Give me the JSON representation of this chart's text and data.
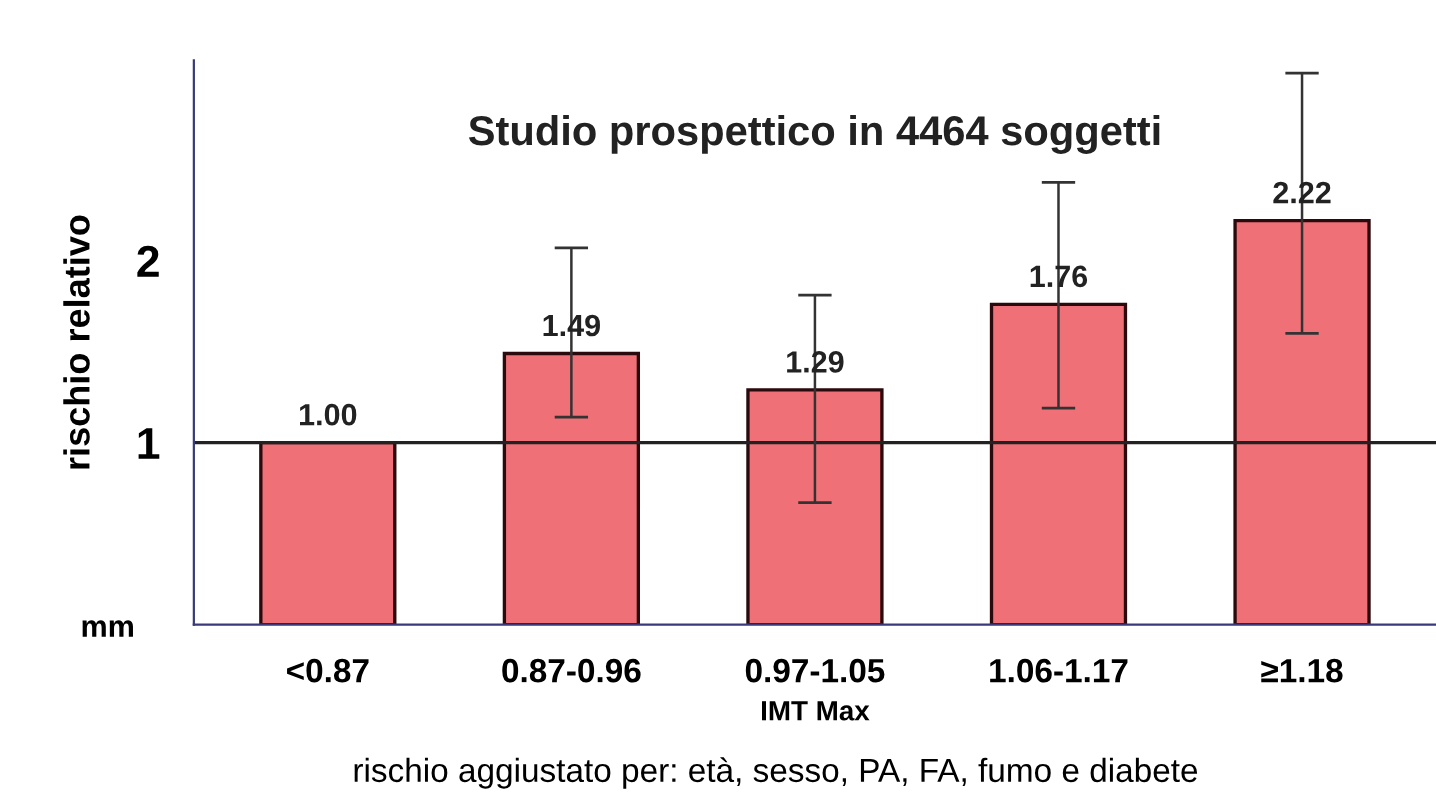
{
  "chart_data": {
    "type": "bar",
    "title": "Studio prospettico in 4464 soggetti",
    "ylabel": "rischio relativo",
    "xlabel": "IMT Max",
    "categories": [
      "<0.87",
      "0.87-0.96",
      "0.97-1.05",
      "1.06-1.17",
      "≥1.18"
    ],
    "values": [
      1.0,
      1.49,
      1.29,
      1.76,
      2.22
    ],
    "errors": [
      null,
      [
        1.14,
        2.07
      ],
      [
        0.67,
        1.81
      ],
      [
        1.19,
        2.43
      ],
      [
        1.6,
        3.03
      ]
    ],
    "color": "#f07078",
    "value_labels": [
      "1.00",
      "1.49",
      "1.29",
      "1.76",
      "2.22"
    ],
    "ylim": [
      0,
      3.1
    ],
    "yticks": [
      1,
      2
    ],
    "grid": false,
    "ref_lines": [
      {
        "axis": "y",
        "value": 1,
        "color": "#222222"
      }
    ],
    "annotations": [
      "mm",
      "rischio aggiustato per: età, sesso, PA, FA, fumo e diabete"
    ]
  }
}
